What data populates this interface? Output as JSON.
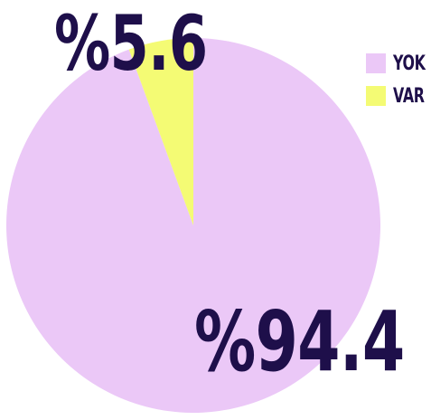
{
  "chart_data": {
    "type": "pie",
    "categories": [
      "YOK",
      "VAR"
    ],
    "values": [
      94.4,
      5.6
    ],
    "labels": [
      "%94.4",
      "%5.6"
    ],
    "colors": [
      "#ebc8f7",
      "#f4fb74"
    ],
    "legend": {
      "placement": "top-right",
      "entries": [
        "YOK",
        "VAR"
      ]
    }
  }
}
